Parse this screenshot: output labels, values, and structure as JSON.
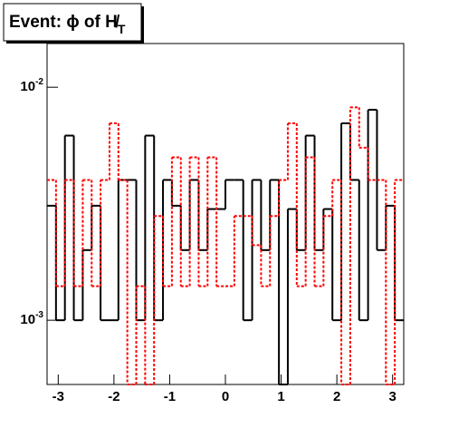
{
  "chart_data": {
    "type": "histogram",
    "title": "Event: ϕ of H̸",
    "title_sub": "T",
    "bins": [
      -3.2,
      -3.04,
      -2.88,
      -2.72,
      -2.56,
      -2.4,
      -2.24,
      -2.08,
      -1.92,
      -1.76,
      -1.6,
      -1.44,
      -1.28,
      -1.12,
      -0.96,
      -0.8,
      -0.64,
      -0.48,
      -0.32,
      -0.16,
      0,
      0.16,
      0.32,
      0.48,
      0.64,
      0.8,
      0.96,
      1.12,
      1.28,
      1.44,
      1.6,
      1.76,
      1.92,
      2.08,
      2.24,
      2.4,
      2.56,
      2.72,
      2.88,
      3.04,
      3.2
    ],
    "series": [
      {
        "color": "#000000",
        "style": "solid",
        "values": [
          0.0031,
          0.001,
          0.0062,
          0.001,
          0.002,
          0.0031,
          0.001,
          0.001,
          0.004,
          0.004,
          0.001,
          0.0062,
          0.001,
          0.004,
          0.0031,
          0.002,
          0.004,
          0.002,
          0.003,
          0.003,
          0.004,
          0.004,
          0.001,
          0.004,
          0.002,
          0.004,
          0,
          0.003,
          0.002,
          0.0062,
          0.002,
          0.003,
          0.001,
          0.007,
          0.004,
          0.001,
          0.008,
          0.002,
          0.0031,
          0.001
        ]
      },
      {
        "color": "#ff0000",
        "style": "dashed",
        "values": [
          0.004,
          0.0014,
          0.004,
          0.0014,
          0.004,
          0.0014,
          0.004,
          0.007,
          0.004,
          0,
          0.0014,
          0,
          0.0028,
          0.0014,
          0.005,
          0.0014,
          0.005,
          0.0014,
          0.005,
          0.0014,
          0.0014,
          0.0028,
          0.0028,
          0.0021,
          0.0014,
          0.0028,
          0.004,
          0.007,
          0.0014,
          0.005,
          0.0014,
          0.0028,
          0.004,
          0,
          0.0082,
          0.0055,
          0.004,
          0.004,
          0,
          0.004
        ]
      }
    ],
    "xlim": [
      -3.2,
      3.2
    ],
    "xticks": [
      -3,
      -2,
      -1,
      0,
      1,
      2,
      3
    ],
    "ylim": [
      0.00053,
      0.0154
    ],
    "log_y": true,
    "yticks": [
      {
        "value": 0.001,
        "label": "10",
        "exponent": "-3"
      },
      {
        "value": 0.01,
        "label": "10",
        "exponent": "-2"
      }
    ]
  }
}
